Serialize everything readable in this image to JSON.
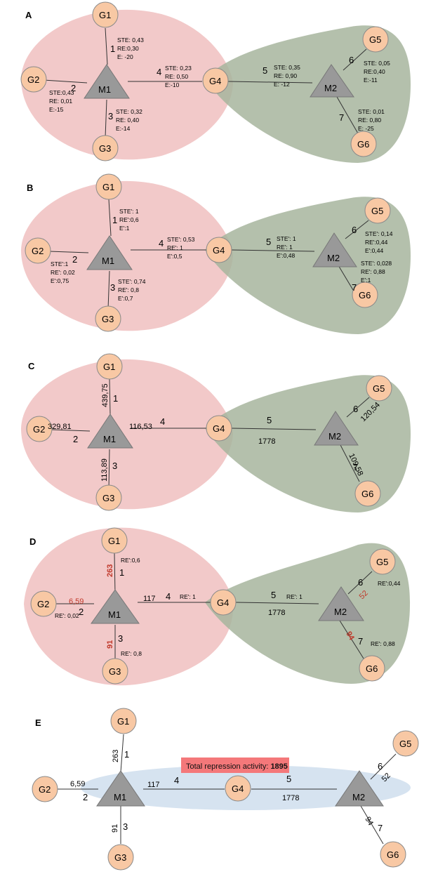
{
  "panels": [
    {
      "id": "A",
      "label": "A",
      "nodes": {
        "G1": "G1",
        "G2": "G2",
        "G3": "G3",
        "G4": "G4",
        "G5": "G5",
        "G6": "G6",
        "M1": "M1",
        "M2": "M2"
      },
      "edges": [
        "1",
        "2",
        "3",
        "4",
        "5",
        "6",
        "7"
      ],
      "annotations": {
        "e1": [
          "STE: 0,43",
          "RE:0,30",
          "E: -20"
        ],
        "e2": [
          "STE:0,43",
          "RE: 0,01",
          "E:-15"
        ],
        "e3": [
          "STE: 0,32",
          "RE: 0,40",
          "E:-14"
        ],
        "e4": [
          "STE: 0,23",
          "RE: 0,50",
          "E:-10"
        ],
        "e5": [
          "STE: 0,35",
          "RE: 0,90",
          "E: -12"
        ],
        "e6": [
          "STE: 0,05",
          "RE:0,40",
          "E:-11"
        ],
        "e7": [
          "STE: 0,01",
          "RE: 0,80",
          "E: -25"
        ]
      }
    },
    {
      "id": "B",
      "label": "B",
      "nodes": {
        "G1": "G1",
        "G2": "G2",
        "G3": "G3",
        "G4": "G4",
        "G5": "G5",
        "G6": "G6",
        "M1": "M1",
        "M2": "M2"
      },
      "edges": [
        "1",
        "2",
        "3",
        "4",
        "5",
        "6",
        "7"
      ],
      "annotations": {
        "e1": [
          "STE': 1",
          "RE':0,6",
          "E':1"
        ],
        "e2": [
          "STE':1",
          "RE': 0,02",
          "E':0,75"
        ],
        "e3": [
          "STE': 0,74",
          "RE': 0,8",
          "E':0,7"
        ],
        "e4": [
          "STE': 0,53",
          "RE': 1",
          "E':0,5"
        ],
        "e5": [
          "STE': 1",
          "RE': 1",
          "E':0,48"
        ],
        "e6": [
          "STE': 0,14",
          "RE':0,44",
          "E':0,44"
        ],
        "e7": [
          "STE': 0,028",
          "RE': 0,88",
          "E':1"
        ]
      }
    },
    {
      "id": "C",
      "label": "C",
      "nodes": {
        "G1": "G1",
        "G2": "G2",
        "G3": "G3",
        "G4": "G4",
        "G5": "G5",
        "G6": "G6",
        "M1": "M1",
        "M2": "M2"
      },
      "edges": [
        "1",
        "2",
        "3",
        "4",
        "5",
        "6",
        "7"
      ],
      "values": {
        "e1": "439,75",
        "e2": "329,81",
        "e3": "113,89",
        "e4": "116,53",
        "e5": "1778",
        "e6": "120,54",
        "e7": "109,58"
      }
    },
    {
      "id": "D",
      "label": "D",
      "nodes": {
        "G1": "G1",
        "G2": "G2",
        "G3": "G3",
        "G4": "G4",
        "G5": "G5",
        "G6": "G6",
        "M1": "M1",
        "M2": "M2"
      },
      "edges": [
        "1",
        "2",
        "3",
        "4",
        "5",
        "6",
        "7"
      ],
      "values": {
        "e1": "263",
        "e2": "6,59",
        "e3": "91",
        "e4": "117",
        "e5": "1778",
        "e6": "52",
        "e7": "94"
      },
      "re": {
        "e1": "RE':0,6",
        "e2": "RE': 0,02",
        "e3": "RE': 0,8",
        "e4": "RE': 1",
        "e5": "RE': 1",
        "e6": "RE':0,44",
        "e7": "RE': 0,88"
      }
    },
    {
      "id": "E",
      "label": "E",
      "nodes": {
        "G1": "G1",
        "G2": "G2",
        "G3": "G3",
        "G4": "G4",
        "G5": "G5",
        "G6": "G6",
        "M1": "M1",
        "M2": "M2"
      },
      "edges": [
        "1",
        "2",
        "3",
        "4",
        "5",
        "6",
        "7"
      ],
      "values": {
        "e1": "263",
        "e2": "6,59",
        "e3": "91",
        "e4": "117",
        "e5": "1778",
        "e6": "52",
        "e7": "94"
      },
      "total_label": "Total repression activity: ",
      "total_value": "1895"
    }
  ],
  "colors": {
    "left_region": "#f2c9c9",
    "right_region": "#b5c2ab",
    "node_fill": "#f8c8a4",
    "node_stroke": "#8a8a8a",
    "triangle_fill": "#999999",
    "ellipse_fill": "#d6e3f0",
    "banner_fill": "#f4787a",
    "red_text": "#c0392b"
  }
}
